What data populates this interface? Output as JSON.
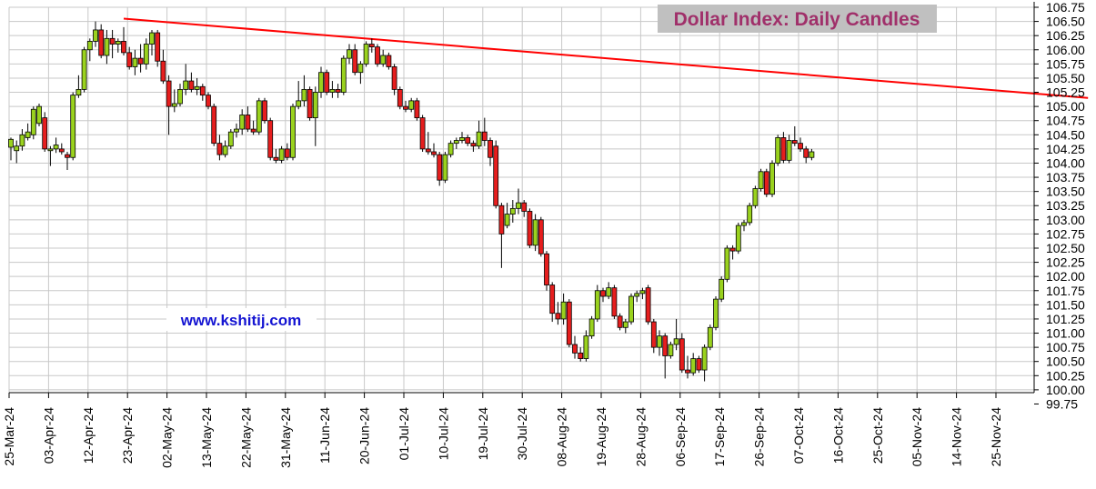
{
  "chart_data": {
    "type": "candlestick",
    "title": "Dollar Index: Daily Candles",
    "watermark": "www.kshitij.com",
    "y_ticks": [
      "99.75",
      "100.00",
      "100.25",
      "100.50",
      "100.75",
      "101.00",
      "101.25",
      "101.50",
      "101.75",
      "102.00",
      "102.25",
      "102.50",
      "102.75",
      "103.00",
      "103.25",
      "103.50",
      "103.75",
      "104.00",
      "104.25",
      "104.50",
      "104.75",
      "105.00",
      "105.25",
      "105.50",
      "105.75",
      "106.00",
      "106.25",
      "106.50",
      "106.75"
    ],
    "ylim": [
      99.95,
      106.75
    ],
    "x_tick_labels": [
      "25-Mar-24",
      "03-Apr-24",
      "12-Apr-24",
      "23-Apr-24",
      "02-May-24",
      "13-May-24",
      "22-May-24",
      "31-May-24",
      "11-Jun-24",
      "20-Jun-24",
      "01-Jul-24",
      "10-Jul-24",
      "19-Jul-24",
      "30-Jul-24",
      "08-Aug-24",
      "19-Aug-24",
      "28-Aug-24",
      "06-Sep-24",
      "17-Sep-24",
      "26-Sep-24",
      "07-Oct-24",
      "16-Oct-24",
      "25-Oct-24",
      "05-Nov-24",
      "14-Nov-24",
      "25-Nov-24"
    ],
    "x_tick_index": [
      0,
      7,
      14,
      21,
      28,
      35,
      42,
      49,
      56,
      63,
      70,
      77,
      84,
      91,
      98,
      105,
      112,
      119,
      126,
      133,
      140,
      147,
      154,
      161,
      168,
      175
    ],
    "candles": [
      {
        "o": 104.28,
        "h": 104.45,
        "l": 104.05,
        "c": 104.42
      },
      {
        "o": 104.22,
        "h": 104.4,
        "l": 104.0,
        "c": 104.3
      },
      {
        "o": 104.3,
        "h": 104.6,
        "l": 104.22,
        "c": 104.5
      },
      {
        "o": 104.45,
        "h": 104.7,
        "l": 104.4,
        "c": 104.55
      },
      {
        "o": 104.5,
        "h": 105.0,
        "l": 104.42,
        "c": 104.95
      },
      {
        "o": 104.7,
        "h": 105.05,
        "l": 104.65,
        "c": 105.0
      },
      {
        "o": 104.8,
        "h": 104.9,
        "l": 104.2,
        "c": 104.25
      },
      {
        "o": 104.22,
        "h": 104.3,
        "l": 103.95,
        "c": 104.25
      },
      {
        "o": 104.25,
        "h": 104.45,
        "l": 104.18,
        "c": 104.32
      },
      {
        "o": 104.25,
        "h": 104.35,
        "l": 104.15,
        "c": 104.2
      },
      {
        "o": 104.15,
        "h": 104.2,
        "l": 103.88,
        "c": 104.1
      },
      {
        "o": 104.1,
        "h": 105.25,
        "l": 104.05,
        "c": 105.2
      },
      {
        "o": 105.2,
        "h": 105.55,
        "l": 105.15,
        "c": 105.3
      },
      {
        "o": 105.3,
        "h": 106.05,
        "l": 105.25,
        "c": 106.0
      },
      {
        "o": 106.0,
        "h": 106.2,
        "l": 105.8,
        "c": 106.15
      },
      {
        "o": 106.15,
        "h": 106.5,
        "l": 106.05,
        "c": 106.35
      },
      {
        "o": 106.35,
        "h": 106.45,
        "l": 105.85,
        "c": 105.9
      },
      {
        "o": 105.9,
        "h": 106.35,
        "l": 105.75,
        "c": 106.2
      },
      {
        "o": 106.2,
        "h": 106.35,
        "l": 105.85,
        "c": 106.1
      },
      {
        "o": 106.1,
        "h": 106.2,
        "l": 105.95,
        "c": 106.15
      },
      {
        "o": 106.15,
        "h": 106.4,
        "l": 105.9,
        "c": 105.95
      },
      {
        "o": 105.95,
        "h": 106.05,
        "l": 105.65,
        "c": 105.7
      },
      {
        "o": 105.7,
        "h": 106.0,
        "l": 105.55,
        "c": 105.85
      },
      {
        "o": 105.85,
        "h": 106.1,
        "l": 105.6,
        "c": 105.75
      },
      {
        "o": 105.75,
        "h": 106.2,
        "l": 105.65,
        "c": 106.1
      },
      {
        "o": 106.1,
        "h": 106.35,
        "l": 105.9,
        "c": 106.3
      },
      {
        "o": 106.3,
        "h": 106.35,
        "l": 105.7,
        "c": 105.8
      },
      {
        "o": 105.8,
        "h": 106.0,
        "l": 105.4,
        "c": 105.45
      },
      {
        "o": 105.45,
        "h": 105.55,
        "l": 104.5,
        "c": 105.0
      },
      {
        "o": 105.0,
        "h": 105.3,
        "l": 104.9,
        "c": 105.05
      },
      {
        "o": 105.05,
        "h": 105.4,
        "l": 105.0,
        "c": 105.3
      },
      {
        "o": 105.3,
        "h": 105.75,
        "l": 105.2,
        "c": 105.45
      },
      {
        "o": 105.45,
        "h": 105.6,
        "l": 105.25,
        "c": 105.3
      },
      {
        "o": 105.3,
        "h": 105.5,
        "l": 105.2,
        "c": 105.35
      },
      {
        "o": 105.35,
        "h": 105.4,
        "l": 105.1,
        "c": 105.2
      },
      {
        "o": 105.2,
        "h": 105.25,
        "l": 104.95,
        "c": 105.0
      },
      {
        "o": 105.0,
        "h": 105.05,
        "l": 104.3,
        "c": 104.35
      },
      {
        "o": 104.35,
        "h": 104.5,
        "l": 104.05,
        "c": 104.15
      },
      {
        "o": 104.15,
        "h": 104.4,
        "l": 104.1,
        "c": 104.3
      },
      {
        "o": 104.3,
        "h": 104.6,
        "l": 104.25,
        "c": 104.55
      },
      {
        "o": 104.55,
        "h": 104.7,
        "l": 104.45,
        "c": 104.6
      },
      {
        "o": 104.6,
        "h": 104.95,
        "l": 104.5,
        "c": 104.85
      },
      {
        "o": 104.85,
        "h": 105.0,
        "l": 104.55,
        "c": 104.6
      },
      {
        "o": 104.6,
        "h": 104.75,
        "l": 104.5,
        "c": 104.55
      },
      {
        "o": 104.55,
        "h": 105.15,
        "l": 104.5,
        "c": 105.1
      },
      {
        "o": 105.1,
        "h": 105.15,
        "l": 104.7,
        "c": 104.75
      },
      {
        "o": 104.75,
        "h": 104.8,
        "l": 104.05,
        "c": 104.1
      },
      {
        "o": 104.1,
        "h": 104.25,
        "l": 104.0,
        "c": 104.05
      },
      {
        "o": 104.05,
        "h": 104.3,
        "l": 104.0,
        "c": 104.25
      },
      {
        "o": 104.25,
        "h": 104.35,
        "l": 104.05,
        "c": 104.1
      },
      {
        "o": 104.1,
        "h": 105.05,
        "l": 104.05,
        "c": 105.0
      },
      {
        "o": 105.0,
        "h": 105.45,
        "l": 104.95,
        "c": 105.1
      },
      {
        "o": 105.1,
        "h": 105.55,
        "l": 105.0,
        "c": 105.3
      },
      {
        "o": 105.3,
        "h": 105.35,
        "l": 104.75,
        "c": 104.8
      },
      {
        "o": 104.8,
        "h": 105.35,
        "l": 104.3,
        "c": 105.25
      },
      {
        "o": 105.25,
        "h": 105.7,
        "l": 105.15,
        "c": 105.6
      },
      {
        "o": 105.6,
        "h": 105.65,
        "l": 105.2,
        "c": 105.25
      },
      {
        "o": 105.25,
        "h": 105.45,
        "l": 105.15,
        "c": 105.3
      },
      {
        "o": 105.3,
        "h": 105.4,
        "l": 105.15,
        "c": 105.25
      },
      {
        "o": 105.25,
        "h": 105.9,
        "l": 105.2,
        "c": 105.85
      },
      {
        "o": 105.85,
        "h": 106.1,
        "l": 105.75,
        "c": 106.0
      },
      {
        "o": 106.0,
        "h": 106.1,
        "l": 105.55,
        "c": 105.6
      },
      {
        "o": 105.6,
        "h": 105.8,
        "l": 105.4,
        "c": 105.75
      },
      {
        "o": 105.75,
        "h": 106.15,
        "l": 105.7,
        "c": 106.1
      },
      {
        "o": 106.1,
        "h": 106.2,
        "l": 105.95,
        "c": 106.05
      },
      {
        "o": 106.05,
        "h": 106.1,
        "l": 105.7,
        "c": 105.75
      },
      {
        "o": 105.75,
        "h": 106.0,
        "l": 105.7,
        "c": 105.9
      },
      {
        "o": 105.9,
        "h": 105.95,
        "l": 105.65,
        "c": 105.7
      },
      {
        "o": 105.7,
        "h": 105.75,
        "l": 105.2,
        "c": 105.3
      },
      {
        "o": 105.3,
        "h": 105.35,
        "l": 104.95,
        "c": 105.0
      },
      {
        "o": 105.0,
        "h": 105.1,
        "l": 104.9,
        "c": 104.95
      },
      {
        "o": 104.95,
        "h": 105.15,
        "l": 104.9,
        "c": 105.1
      },
      {
        "o": 105.1,
        "h": 105.15,
        "l": 104.75,
        "c": 104.8
      },
      {
        "o": 104.8,
        "h": 104.85,
        "l": 104.2,
        "c": 104.25
      },
      {
        "o": 104.25,
        "h": 104.55,
        "l": 104.15,
        "c": 104.2
      },
      {
        "o": 104.2,
        "h": 104.35,
        "l": 104.1,
        "c": 104.15
      },
      {
        "o": 104.15,
        "h": 104.2,
        "l": 103.6,
        "c": 103.7
      },
      {
        "o": 103.7,
        "h": 104.2,
        "l": 103.65,
        "c": 104.15
      },
      {
        "o": 104.15,
        "h": 104.4,
        "l": 104.1,
        "c": 104.35
      },
      {
        "o": 104.35,
        "h": 104.45,
        "l": 104.25,
        "c": 104.4
      },
      {
        "o": 104.4,
        "h": 104.55,
        "l": 104.35,
        "c": 104.45
      },
      {
        "o": 104.45,
        "h": 104.5,
        "l": 104.3,
        "c": 104.35
      },
      {
        "o": 104.35,
        "h": 104.4,
        "l": 104.2,
        "c": 104.3
      },
      {
        "o": 104.3,
        "h": 104.75,
        "l": 104.25,
        "c": 104.55
      },
      {
        "o": 104.55,
        "h": 104.8,
        "l": 104.3,
        "c": 104.4
      },
      {
        "o": 104.4,
        "h": 104.45,
        "l": 103.95,
        "c": 104.1
      },
      {
        "o": 104.3,
        "h": 104.4,
        "l": 103.2,
        "c": 103.25
      },
      {
        "o": 103.25,
        "h": 103.3,
        "l": 102.15,
        "c": 102.75
      },
      {
        "o": 102.9,
        "h": 103.3,
        "l": 102.85,
        "c": 103.1
      },
      {
        "o": 103.1,
        "h": 103.35,
        "l": 102.95,
        "c": 103.2
      },
      {
        "o": 103.2,
        "h": 103.55,
        "l": 103.1,
        "c": 103.3
      },
      {
        "o": 103.3,
        "h": 103.35,
        "l": 103.05,
        "c": 103.15
      },
      {
        "o": 103.15,
        "h": 103.2,
        "l": 102.5,
        "c": 102.55
      },
      {
        "o": 102.55,
        "h": 103.1,
        "l": 102.45,
        "c": 103.0
      },
      {
        "o": 103.0,
        "h": 103.05,
        "l": 102.35,
        "c": 102.4
      },
      {
        "o": 102.4,
        "h": 102.45,
        "l": 101.75,
        "c": 101.85
      },
      {
        "o": 101.85,
        "h": 101.9,
        "l": 101.2,
        "c": 101.35
      },
      {
        "o": 101.35,
        "h": 101.55,
        "l": 101.15,
        "c": 101.25
      },
      {
        "o": 101.25,
        "h": 101.7,
        "l": 101.15,
        "c": 101.55
      },
      {
        "o": 101.55,
        "h": 101.6,
        "l": 100.75,
        "c": 100.8
      },
      {
        "o": 100.8,
        "h": 100.95,
        "l": 100.55,
        "c": 100.65
      },
      {
        "o": 100.65,
        "h": 100.75,
        "l": 100.5,
        "c": 100.55
      },
      {
        "o": 100.55,
        "h": 101.05,
        "l": 100.5,
        "c": 100.95
      },
      {
        "o": 100.95,
        "h": 101.3,
        "l": 100.9,
        "c": 101.25
      },
      {
        "o": 101.25,
        "h": 101.85,
        "l": 101.2,
        "c": 101.75
      },
      {
        "o": 101.75,
        "h": 101.8,
        "l": 101.55,
        "c": 101.65
      },
      {
        "o": 101.65,
        "h": 101.9,
        "l": 101.6,
        "c": 101.8
      },
      {
        "o": 101.8,
        "h": 101.85,
        "l": 101.25,
        "c": 101.3
      },
      {
        "o": 101.3,
        "h": 101.35,
        "l": 101.05,
        "c": 101.1
      },
      {
        "o": 101.1,
        "h": 101.25,
        "l": 101.0,
        "c": 101.2
      },
      {
        "o": 101.2,
        "h": 101.7,
        "l": 101.15,
        "c": 101.65
      },
      {
        "o": 101.65,
        "h": 101.75,
        "l": 101.55,
        "c": 101.7
      },
      {
        "o": 101.7,
        "h": 101.8,
        "l": 101.6,
        "c": 101.75
      },
      {
        "o": 101.8,
        "h": 101.85,
        "l": 101.15,
        "c": 101.2
      },
      {
        "o": 101.2,
        "h": 101.25,
        "l": 100.65,
        "c": 100.75
      },
      {
        "o": 100.75,
        "h": 101.05,
        "l": 100.6,
        "c": 100.95
      },
      {
        "o": 100.95,
        "h": 101.0,
        "l": 100.2,
        "c": 100.6
      },
      {
        "o": 100.6,
        "h": 100.85,
        "l": 100.55,
        "c": 100.8
      },
      {
        "o": 100.8,
        "h": 101.25,
        "l": 100.7,
        "c": 100.9
      },
      {
        "o": 100.9,
        "h": 101.0,
        "l": 100.3,
        "c": 100.35
      },
      {
        "o": 100.35,
        "h": 100.6,
        "l": 100.2,
        "c": 100.3
      },
      {
        "o": 100.3,
        "h": 100.65,
        "l": 100.25,
        "c": 100.55
      },
      {
        "o": 100.55,
        "h": 100.6,
        "l": 100.3,
        "c": 100.35
      },
      {
        "o": 100.35,
        "h": 100.8,
        "l": 100.15,
        "c": 100.75
      },
      {
        "o": 100.75,
        "h": 101.15,
        "l": 100.7,
        "c": 101.1
      },
      {
        "o": 101.1,
        "h": 101.65,
        "l": 101.05,
        "c": 101.6
      },
      {
        "o": 101.6,
        "h": 102.0,
        "l": 101.55,
        "c": 101.95
      },
      {
        "o": 101.95,
        "h": 102.55,
        "l": 101.9,
        "c": 102.5
      },
      {
        "o": 102.5,
        "h": 102.55,
        "l": 102.3,
        "c": 102.45
      },
      {
        "o": 102.45,
        "h": 102.95,
        "l": 102.4,
        "c": 102.9
      },
      {
        "o": 102.9,
        "h": 103.0,
        "l": 102.8,
        "c": 102.95
      },
      {
        "o": 102.95,
        "h": 103.3,
        "l": 102.9,
        "c": 103.25
      },
      {
        "o": 103.25,
        "h": 103.6,
        "l": 103.2,
        "c": 103.55
      },
      {
        "o": 103.55,
        "h": 103.9,
        "l": 103.5,
        "c": 103.85
      },
      {
        "o": 103.85,
        "h": 103.9,
        "l": 103.4,
        "c": 103.45
      },
      {
        "o": 103.45,
        "h": 104.05,
        "l": 103.4,
        "c": 104.0
      },
      {
        "o": 104.0,
        "h": 104.5,
        "l": 103.95,
        "c": 104.45
      },
      {
        "o": 104.45,
        "h": 104.55,
        "l": 104.0,
        "c": 104.05
      },
      {
        "o": 104.05,
        "h": 104.5,
        "l": 104.0,
        "c": 104.4
      },
      {
        "o": 104.4,
        "h": 104.65,
        "l": 104.3,
        "c": 104.35
      },
      {
        "o": 104.35,
        "h": 104.45,
        "l": 104.2,
        "c": 104.25
      },
      {
        "o": 104.25,
        "h": 104.3,
        "l": 104.0,
        "c": 104.1
      },
      {
        "o": 104.1,
        "h": 104.25,
        "l": 104.05,
        "c": 104.2
      }
    ],
    "trendline": {
      "from": {
        "index": 20,
        "value": 106.55
      },
      "to": {
        "index": 191,
        "value": 105.15
      }
    },
    "colors": {
      "up": "#9ad21e",
      "down": "#e61e1e",
      "wick": "#000000",
      "trend": "#ff0000",
      "grid": "#c8c8c8",
      "title_bg": "#c0c0c0",
      "title_fg": "#a0306a",
      "watermark": "#1414d2"
    }
  }
}
